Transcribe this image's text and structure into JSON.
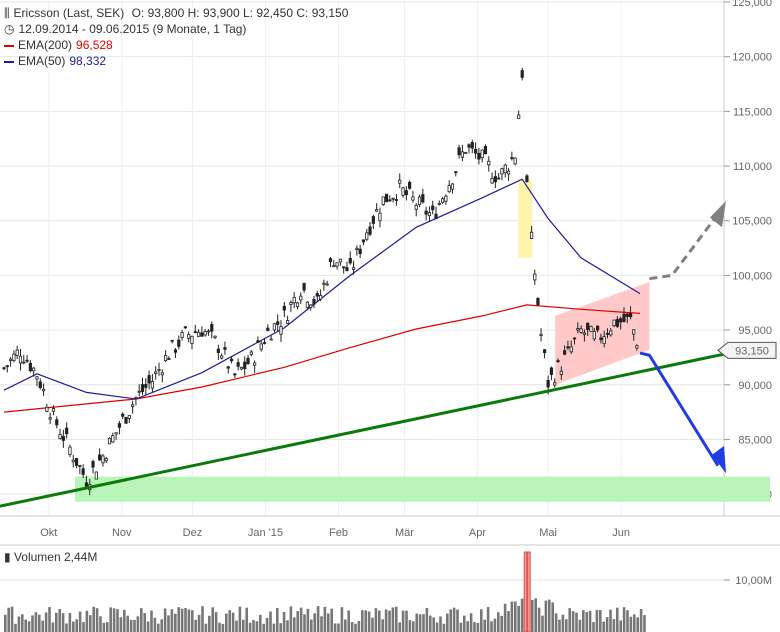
{
  "header": {
    "icon": "candlestick-icon",
    "title": "Ericsson (Last, SEK)",
    "ohlc": "O: 93,800  H: 93,900  L: 92,450  C: 93,150",
    "range_icon": "clock-icon",
    "range": "12.09.2014 - 09.06.2015 (9 Monate, 1 Tag)"
  },
  "legend": [
    {
      "label": "EMA(200)",
      "value": "96,528",
      "color": "#e00000"
    },
    {
      "label": "EMA(50)",
      "value": "98,332",
      "color": "#1c1c9c"
    }
  ],
  "volume_label": "Volumen 2,44M",
  "last_price_label": "93,150",
  "colors": {
    "ema200": "#e00000",
    "ema50": "#1c1c9c",
    "trend": "#0b7a0b",
    "support_zone": "#b9f5b9",
    "triangle": "#ffc9c9",
    "gap": "#fff3b0",
    "down_arrow": "#1f3de0",
    "up_arrow": "#808080"
  },
  "chart_data": {
    "type": "candlestick",
    "title": "Ericsson (Last, SEK)",
    "ylim": [
      78000,
      125000
    ],
    "y_ticks": [
      {
        "value": 80000,
        "label": "80,000"
      },
      {
        "value": 85000,
        "label": "85,000"
      },
      {
        "value": 90000,
        "label": "90,000"
      },
      {
        "value": 95000,
        "label": "95,000"
      },
      {
        "value": 100000,
        "label": "100,000"
      },
      {
        "value": 105000,
        "label": "105,000"
      },
      {
        "value": 110000,
        "label": "110,000"
      },
      {
        "value": 115000,
        "label": "115,000"
      },
      {
        "value": 120000,
        "label": "120,000"
      },
      {
        "value": 125000,
        "label": "125,000"
      }
    ],
    "x_ticks": [
      "Okt",
      "Nov",
      "Dez",
      "Jan '15",
      "Feb",
      "Mär",
      "Apr",
      "Mai",
      "Jun"
    ],
    "price_path": [
      [
        "2014-09-12",
        91500
      ],
      [
        "2014-09-19",
        93200
      ],
      [
        "2014-09-26",
        91000
      ],
      [
        "2014-10-03",
        87000
      ],
      [
        "2014-10-10",
        84200
      ],
      [
        "2014-10-17",
        81300
      ],
      [
        "2014-10-24",
        83500
      ],
      [
        "2014-10-31",
        86200
      ],
      [
        "2014-11-07",
        88800
      ],
      [
        "2014-11-14",
        90400
      ],
      [
        "2014-11-21",
        92900
      ],
      [
        "2014-11-28",
        94500
      ],
      [
        "2014-12-05",
        95100
      ],
      [
        "2014-12-12",
        93600
      ],
      [
        "2014-12-19",
        90800
      ],
      [
        "2014-12-26",
        92300
      ],
      [
        "2015-01-02",
        94800
      ],
      [
        "2015-01-09",
        96200
      ],
      [
        "2015-01-16",
        98900
      ],
      [
        "2015-01-23",
        97400
      ],
      [
        "2015-01-30",
        101600
      ],
      [
        "2015-02-06",
        100300
      ],
      [
        "2015-02-13",
        104100
      ],
      [
        "2015-02-20",
        106900
      ],
      [
        "2015-02-27",
        107900
      ],
      [
        "2015-03-06",
        106600
      ],
      [
        "2015-03-13",
        105400
      ],
      [
        "2015-03-20",
        108500
      ],
      [
        "2015-03-27",
        111700
      ],
      [
        "2015-04-03",
        110600
      ],
      [
        "2015-04-10",
        108900
      ],
      [
        "2015-04-17",
        111100
      ],
      [
        "2015-04-20",
        118600
      ],
      [
        "2015-04-22",
        108300
      ],
      [
        "2015-04-24",
        103100
      ],
      [
        "2015-04-28",
        94600
      ],
      [
        "2015-05-01",
        90200
      ],
      [
        "2015-05-08",
        92300
      ],
      [
        "2015-05-15",
        94900
      ],
      [
        "2015-05-22",
        94200
      ],
      [
        "2015-05-29",
        95700
      ],
      [
        "2015-06-05",
        95900
      ],
      [
        "2015-06-09",
        93150
      ]
    ],
    "ema200": [
      [
        "2014-09-12",
        87500
      ],
      [
        "2014-10-10",
        88100
      ],
      [
        "2014-11-07",
        88700
      ],
      [
        "2014-12-05",
        89800
      ],
      [
        "2015-01-09",
        91600
      ],
      [
        "2015-02-06",
        93400
      ],
      [
        "2015-03-06",
        95100
      ],
      [
        "2015-04-03",
        96300
      ],
      [
        "2015-04-22",
        97300
      ],
      [
        "2015-05-15",
        96900
      ],
      [
        "2015-06-09",
        96528
      ]
    ],
    "ema50": [
      [
        "2014-09-12",
        89500
      ],
      [
        "2014-09-26",
        91000
      ],
      [
        "2014-10-17",
        89300
      ],
      [
        "2014-11-07",
        88700
      ],
      [
        "2014-12-05",
        91100
      ],
      [
        "2015-01-09",
        95200
      ],
      [
        "2015-02-06",
        100000
      ],
      [
        "2015-03-06",
        104400
      ],
      [
        "2015-04-03",
        107100
      ],
      [
        "2015-04-20",
        108800
      ],
      [
        "2015-05-01",
        105200
      ],
      [
        "2015-05-15",
        101600
      ],
      [
        "2015-06-09",
        98332
      ]
    ],
    "volume": {
      "label": "Volumen 2,44M",
      "y_tick": "10,00M",
      "spike_date": "2015-04-22"
    }
  }
}
